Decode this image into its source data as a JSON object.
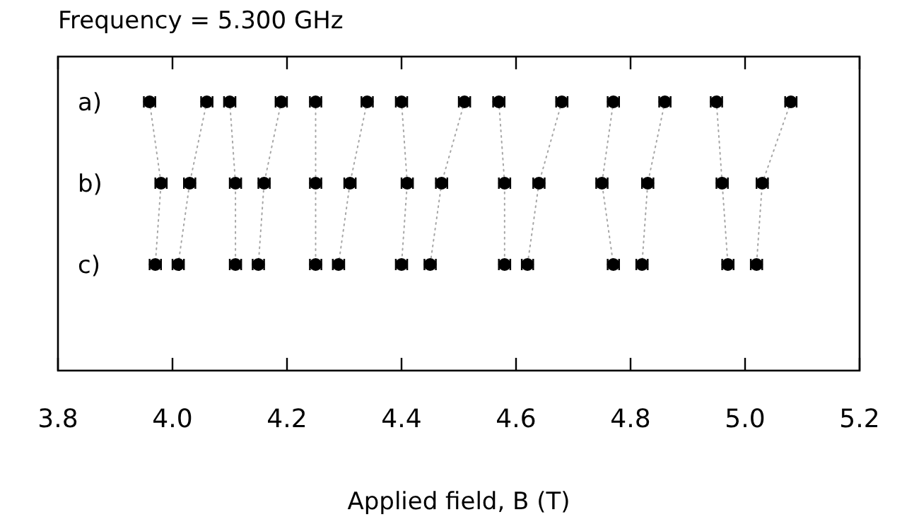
{
  "chart_data": {
    "type": "line",
    "orientation": "horizontal",
    "title": "Frequency = 5.300 GHz",
    "xlabel": "Applied field, B (T)",
    "categories": [
      "a)",
      "b)",
      "c)"
    ],
    "xlim": [
      3.8,
      5.2
    ],
    "xticks": [
      {
        "value": 3.8,
        "label": "3.8"
      },
      {
        "value": 4,
        "label": "4.0"
      },
      {
        "value": 4.2,
        "label": "4.2"
      },
      {
        "value": 4.4,
        "label": "4.4"
      },
      {
        "value": 4.6,
        "label": "4.6"
      },
      {
        "value": 4.8,
        "label": "4.8"
      },
      {
        "value": 5,
        "label": "5.0"
      },
      {
        "value": 5.2,
        "label": "5.2"
      }
    ],
    "grid": false,
    "marker": "circle",
    "line_style": "dotted",
    "series": [
      {
        "color": "#000000",
        "values": [
          3.96,
          3.98,
          3.97
        ],
        "errors": [
          0.01,
          0.01,
          0.01
        ]
      },
      {
        "color": "#000000",
        "values": [
          4.06,
          4.03,
          4.01
        ],
        "errors": [
          0.01,
          0.01,
          0.01
        ]
      },
      {
        "color": "#000000",
        "values": [
          4.1,
          4.11,
          4.11
        ],
        "errors": [
          0.01,
          0.01,
          0.01
        ]
      },
      {
        "color": "#000000",
        "values": [
          4.19,
          4.16,
          4.15
        ],
        "errors": [
          0.01,
          0.01,
          0.01
        ]
      },
      {
        "color": "#000000",
        "values": [
          4.25,
          4.25,
          4.25
        ],
        "errors": [
          0.01,
          0.01,
          0.01
        ]
      },
      {
        "color": "#000000",
        "values": [
          4.34,
          4.31,
          4.29
        ],
        "errors": [
          0.01,
          0.01,
          0.01
        ]
      },
      {
        "color": "#000000",
        "values": [
          4.4,
          4.41,
          4.4
        ],
        "errors": [
          0.01,
          0.01,
          0.01
        ]
      },
      {
        "color": "#000000",
        "values": [
          4.51,
          4.47,
          4.45
        ],
        "errors": [
          0.01,
          0.01,
          0.01
        ]
      },
      {
        "color": "#000000",
        "values": [
          4.57,
          4.58,
          4.58
        ],
        "errors": [
          0.01,
          0.01,
          0.01
        ]
      },
      {
        "color": "#000000",
        "values": [
          4.68,
          4.64,
          4.62
        ],
        "errors": [
          0.01,
          0.01,
          0.01
        ]
      },
      {
        "color": "#000000",
        "values": [
          4.77,
          4.75,
          4.77
        ],
        "errors": [
          0.01,
          0.01,
          0.01
        ]
      },
      {
        "color": "#000000",
        "values": [
          4.86,
          4.83,
          4.82
        ],
        "errors": [
          0.01,
          0.01,
          0.01
        ]
      },
      {
        "color": "#000000",
        "values": [
          4.95,
          4.96,
          4.97
        ],
        "errors": [
          0.01,
          0.01,
          0.01
        ]
      },
      {
        "color": "#000000",
        "values": [
          5.08,
          5.03,
          5.02
        ],
        "errors": [
          0.01,
          0.01,
          0.01
        ]
      }
    ]
  }
}
